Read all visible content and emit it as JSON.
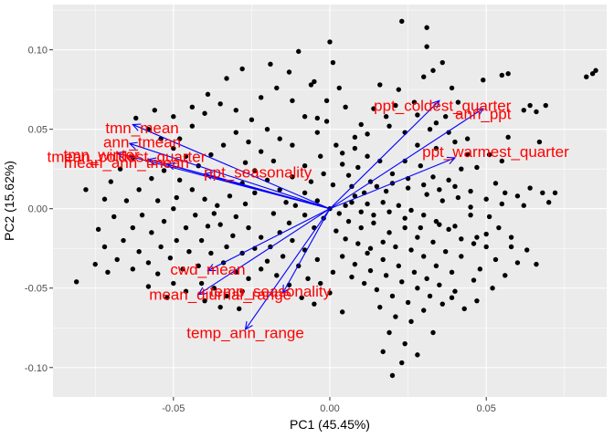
{
  "chart_data": {
    "type": "scatter",
    "title": "",
    "xlabel": "PC1 (45.45%)",
    "ylabel": "PC2 (15.62%)",
    "xlim": [
      -0.0885,
      0.0885
    ],
    "ylim": [
      -0.1185,
      0.1285
    ],
    "xticks": [
      -0.05,
      0.0,
      0.05
    ],
    "xtick_labels": [
      "-0.05",
      "0.00",
      "0.05"
    ],
    "yticks": [
      -0.1,
      -0.05,
      0.0,
      0.05,
      0.1
    ],
    "ytick_labels": [
      "-0.10",
      "-0.05",
      "0.00",
      "0.05",
      "0.10"
    ],
    "grid": true,
    "background": "#ebebeb",
    "point_color": "#000000",
    "arrow_color": "#0000ff",
    "label_color": "#ff0000",
    "loadings": [
      {
        "name": "tmn_mean",
        "x": -0.063,
        "y": 0.053
      },
      {
        "name": "ann_tmean",
        "x": -0.064,
        "y": 0.041
      },
      {
        "name": "tmn_winter",
        "x": -0.068,
        "y": 0.035
      },
      {
        "name": "tmean_coldest_quarter",
        "x": -0.058,
        "y": 0.031
      },
      {
        "name": "mean_ann_tmean",
        "x": -0.052,
        "y": 0.028
      },
      {
        "name": "ppt_seasonality",
        "x": -0.04,
        "y": 0.022
      },
      {
        "name": "ppt_coldest_quarter",
        "x": 0.035,
        "y": 0.068
      },
      {
        "name": "ann_ppt",
        "x": 0.049,
        "y": 0.063
      },
      {
        "name": "ppt_warmest_quarter",
        "x": 0.04,
        "y": 0.032
      },
      {
        "name": "cwd_mean",
        "x": -0.039,
        "y": -0.039
      },
      {
        "name": "mean_diurnal_range",
        "x": -0.042,
        "y": -0.054
      },
      {
        "name": "temp_seasonality",
        "x": -0.015,
        "y": -0.053
      },
      {
        "name": "temp_ann_range",
        "x": -0.027,
        "y": -0.076
      }
    ],
    "label_texts": [
      {
        "text": "tmn_mean",
        "x": -0.06,
        "y": 0.051
      },
      {
        "text": "ann_tmean",
        "x": -0.06,
        "y": 0.042
      },
      {
        "text": "tmn_winter",
        "x": -0.073,
        "y": 0.034
      },
      {
        "text": "tmean_coldest_quarter",
        "x": -0.065,
        "y": 0.033
      },
      {
        "text": "mean_ann_tmean",
        "x": -0.065,
        "y": 0.029
      },
      {
        "text": "ppt_seasonality",
        "x": -0.023,
        "y": 0.023
      },
      {
        "text": "ppt_coldest_quarter",
        "x": 0.036,
        "y": 0.065
      },
      {
        "text": "ann_ppt",
        "x": 0.049,
        "y": 0.06
      },
      {
        "text": "ppt_warmest_quarter",
        "x": 0.053,
        "y": 0.036
      },
      {
        "text": "cwd_mean",
        "x": -0.039,
        "y": -0.038
      },
      {
        "text": "mean_diurnal_range",
        "x": -0.035,
        "y": -0.054
      },
      {
        "text": "temp_seasonality",
        "x": -0.019,
        "y": -0.052
      },
      {
        "text": "temp_ann_range",
        "x": -0.027,
        "y": -0.078
      }
    ],
    "points": [
      [
        0.084,
        0.085
      ],
      [
        0.085,
        0.087
      ],
      [
        0.082,
        0.083
      ],
      [
        0.055,
        0.084
      ],
      [
        0.057,
        0.085
      ],
      [
        0.049,
        0.081
      ],
      [
        0.064,
        0.065
      ],
      [
        0.066,
        0.061
      ],
      [
        0.069,
        0.065
      ],
      [
        0.067,
        0.042
      ],
      [
        0.072,
        0.01
      ],
      [
        0.068,
        0.01
      ],
      [
        0.07,
        0.004
      ],
      [
        0.062,
        0.002
      ],
      [
        0.056,
        0.01
      ],
      [
        0.051,
        -0.005
      ],
      [
        0.05,
        -0.024
      ],
      [
        0.058,
        -0.024
      ],
      [
        0.066,
        -0.035
      ],
      [
        0.053,
        -0.032
      ],
      [
        0.048,
        -0.038
      ],
      [
        0.047,
        -0.018
      ],
      [
        0.045,
        0.001
      ],
      [
        0.053,
        0.016
      ],
      [
        0.055,
        0.03
      ],
      [
        0.057,
        0.045
      ],
      [
        0.062,
        0.062
      ],
      [
        0.023,
        0.118
      ],
      [
        0.031,
        0.114
      ],
      [
        0.031,
        0.102
      ],
      [
        0.036,
        0.092
      ],
      [
        0.033,
        0.087
      ],
      [
        0.03,
        0.083
      ],
      [
        0.039,
        0.076
      ],
      [
        0.041,
        0.067
      ],
      [
        0.037,
        0.058
      ],
      [
        0.032,
        0.05
      ],
      [
        0.028,
        0.059
      ],
      [
        0.021,
        0.065
      ],
      [
        0.016,
        0.078
      ],
      [
        0.014,
        0.063
      ],
      [
        0.01,
        0.053
      ],
      [
        0.019,
        0.052
      ],
      [
        0.024,
        0.048
      ],
      [
        0.028,
        0.04
      ],
      [
        0.034,
        0.038
      ],
      [
        0.04,
        0.042
      ],
      [
        0.044,
        0.034
      ],
      [
        0.042,
        0.025
      ],
      [
        0.038,
        0.018
      ],
      [
        0.033,
        0.02
      ],
      [
        0.029,
        0.027
      ],
      [
        0.024,
        0.03
      ],
      [
        0.02,
        0.022
      ],
      [
        0.016,
        0.03
      ],
      [
        0.012,
        0.033
      ],
      [
        0.009,
        0.026
      ],
      [
        0.006,
        0.021
      ],
      [
        0.013,
        0.017
      ],
      [
        0.018,
        0.011
      ],
      [
        0.025,
        0.013
      ],
      [
        0.031,
        0.009
      ],
      [
        0.036,
        0.005
      ],
      [
        0.041,
        0.007
      ],
      [
        0.045,
        -0.004
      ],
      [
        0.04,
        -0.011
      ],
      [
        0.035,
        -0.01
      ],
      [
        0.03,
        -0.004
      ],
      [
        0.026,
        -0.001
      ],
      [
        0.022,
        0.002
      ],
      [
        0.017,
        0.004
      ],
      [
        0.012,
        0.003
      ],
      [
        0.008,
        0.008
      ],
      [
        0.005,
        0.002
      ],
      [
        0.003,
        -0.003
      ],
      [
        0.006,
        -0.008
      ],
      [
        0.01,
        -0.012
      ],
      [
        0.014,
        -0.009
      ],
      [
        0.019,
        -0.015
      ],
      [
        0.024,
        -0.012
      ],
      [
        0.028,
        -0.018
      ],
      [
        0.033,
        -0.021
      ],
      [
        0.037,
        -0.027
      ],
      [
        0.042,
        -0.03
      ],
      [
        0.039,
        -0.04
      ],
      [
        0.034,
        -0.036
      ],
      [
        0.03,
        -0.03
      ],
      [
        0.026,
        -0.026
      ],
      [
        0.021,
        -0.024
      ],
      [
        0.017,
        -0.021
      ],
      [
        0.013,
        -0.025
      ],
      [
        0.009,
        -0.022
      ],
      [
        0.005,
        -0.019
      ],
      [
        0.002,
        -0.014
      ],
      [
        0.004,
        -0.03
      ],
      [
        0.008,
        -0.035
      ],
      [
        0.013,
        -0.039
      ],
      [
        0.018,
        -0.042
      ],
      [
        0.023,
        -0.046
      ],
      [
        0.028,
        -0.05
      ],
      [
        0.032,
        -0.055
      ],
      [
        0.036,
        -0.06
      ],
      [
        0.03,
        -0.064
      ],
      [
        0.025,
        -0.059
      ],
      [
        0.02,
        -0.055
      ],
      [
        0.015,
        -0.051
      ],
      [
        0.011,
        -0.047
      ],
      [
        0.007,
        -0.043
      ],
      [
        0.016,
        -0.062
      ],
      [
        0.021,
        -0.068
      ],
      [
        0.026,
        -0.071
      ],
      [
        0.019,
        -0.078
      ],
      [
        0.024,
        -0.085
      ],
      [
        0.028,
        -0.092
      ],
      [
        0.023,
        -0.097
      ],
      [
        0.017,
        -0.09
      ],
      [
        0.02,
        -0.105
      ],
      [
        0.033,
        -0.078
      ],
      [
        0.04,
        -0.052
      ],
      [
        0.046,
        -0.045
      ],
      [
        0.0,
        0.105
      ],
      [
        0.001,
        0.092
      ],
      [
        -0.005,
        0.08
      ],
      [
        0.003,
        0.076
      ],
      [
        -0.001,
        0.068
      ],
      [
        0.005,
        0.064
      ],
      [
        -0.004,
        0.057
      ],
      [
        0.008,
        0.045
      ],
      [
        0.002,
        0.04
      ],
      [
        -0.003,
        0.033
      ],
      [
        0.004,
        0.028
      ],
      [
        -0.002,
        0.022
      ],
      [
        0.001,
        0.015
      ],
      [
        -0.006,
        0.017
      ],
      [
        -0.008,
        0.01
      ],
      [
        -0.004,
        0.005
      ],
      [
        0.0,
        0.0
      ],
      [
        -0.002,
        -0.006
      ],
      [
        -0.005,
        -0.012
      ],
      [
        -0.008,
        -0.004
      ],
      [
        -0.011,
        0.002
      ],
      [
        -0.013,
        -0.009
      ],
      [
        -0.016,
        -0.015
      ],
      [
        -0.012,
        -0.02
      ],
      [
        -0.008,
        -0.026
      ],
      [
        -0.004,
        -0.032
      ],
      [
        -0.01,
        -0.036
      ],
      [
        -0.015,
        -0.03
      ],
      [
        -0.019,
        -0.024
      ],
      [
        -0.022,
        -0.018
      ],
      [
        -0.02,
        -0.033
      ],
      [
        -0.017,
        -0.042
      ],
      [
        -0.013,
        -0.048
      ],
      [
        -0.009,
        -0.056
      ],
      [
        -0.005,
        -0.06
      ],
      [
        -0.003,
        -0.047
      ],
      [
        0.001,
        -0.04
      ],
      [
        0.0,
        -0.053
      ],
      [
        0.004,
        -0.065
      ],
      [
        -0.007,
        -0.044
      ],
      [
        -0.024,
        0.01
      ],
      [
        -0.027,
        0.003
      ],
      [
        -0.03,
        -0.005
      ],
      [
        -0.026,
        -0.012
      ],
      [
        -0.031,
        -0.017
      ],
      [
        -0.035,
        -0.01
      ],
      [
        -0.033,
        -0.024
      ],
      [
        -0.028,
        -0.028
      ],
      [
        -0.024,
        -0.025
      ],
      [
        -0.022,
        -0.038
      ],
      [
        -0.026,
        -0.044
      ],
      [
        -0.03,
        -0.04
      ],
      [
        -0.034,
        -0.034
      ],
      [
        -0.038,
        -0.028
      ],
      [
        -0.041,
        -0.02
      ],
      [
        -0.039,
        -0.011
      ],
      [
        -0.043,
        -0.004
      ],
      [
        -0.046,
        -0.012
      ],
      [
        -0.049,
        -0.02
      ],
      [
        -0.045,
        -0.027
      ],
      [
        -0.042,
        -0.036
      ],
      [
        -0.047,
        -0.038
      ],
      [
        -0.051,
        -0.031
      ],
      [
        -0.054,
        -0.024
      ],
      [
        -0.057,
        -0.015
      ],
      [
        -0.053,
        -0.008
      ],
      [
        -0.05,
        0.0
      ],
      [
        -0.055,
        0.005
      ],
      [
        -0.06,
        -0.004
      ],
      [
        -0.063,
        -0.012
      ],
      [
        -0.066,
        -0.02
      ],
      [
        -0.061,
        -0.027
      ],
      [
        -0.058,
        -0.034
      ],
      [
        -0.055,
        -0.041
      ],
      [
        -0.05,
        -0.047
      ],
      [
        -0.046,
        -0.052
      ],
      [
        -0.041,
        -0.047
      ],
      [
        -0.037,
        -0.05
      ],
      [
        -0.033,
        -0.055
      ],
      [
        -0.028,
        -0.052
      ],
      [
        -0.029,
        -0.063
      ],
      [
        -0.035,
        -0.062
      ],
      [
        -0.04,
        -0.058
      ],
      [
        -0.052,
        -0.056
      ],
      [
        -0.058,
        -0.049
      ],
      [
        -0.063,
        -0.038
      ],
      [
        -0.068,
        -0.032
      ],
      [
        -0.072,
        -0.024
      ],
      [
        -0.074,
        -0.013
      ],
      [
        -0.069,
        -0.005
      ],
      [
        -0.072,
        0.006
      ],
      [
        -0.078,
        0.012
      ],
      [
        -0.075,
        -0.035
      ],
      [
        -0.081,
        -0.046
      ],
      [
        -0.071,
        -0.04
      ],
      [
        -0.065,
        0.005
      ],
      [
        -0.061,
        0.012
      ],
      [
        -0.057,
        0.019
      ],
      [
        -0.053,
        0.024
      ],
      [
        -0.048,
        0.018
      ],
      [
        -0.044,
        0.012
      ],
      [
        -0.04,
        0.006
      ],
      [
        -0.036,
        0.002
      ],
      [
        -0.032,
        0.008
      ],
      [
        -0.028,
        0.016
      ],
      [
        -0.024,
        0.024
      ],
      [
        -0.02,
        0.018
      ],
      [
        -0.016,
        0.012
      ],
      [
        -0.012,
        0.02
      ],
      [
        -0.008,
        0.027
      ],
      [
        -0.018,
        0.03
      ],
      [
        -0.022,
        0.036
      ],
      [
        -0.026,
        0.042
      ],
      [
        -0.03,
        0.048
      ],
      [
        -0.034,
        0.04
      ],
      [
        -0.038,
        0.034
      ],
      [
        -0.042,
        0.027
      ],
      [
        -0.046,
        0.033
      ],
      [
        -0.05,
        0.038
      ],
      [
        -0.054,
        0.044
      ],
      [
        -0.058,
        0.05
      ],
      [
        -0.062,
        0.057
      ],
      [
        -0.056,
        0.062
      ],
      [
        -0.05,
        0.058
      ],
      [
        -0.044,
        0.052
      ],
      [
        -0.04,
        0.06
      ],
      [
        -0.035,
        0.066
      ],
      [
        -0.03,
        0.062
      ],
      [
        -0.025,
        0.056
      ],
      [
        -0.02,
        0.05
      ],
      [
        -0.016,
        0.044
      ],
      [
        -0.012,
        0.04
      ],
      [
        -0.022,
        0.07
      ],
      [
        -0.017,
        0.076
      ],
      [
        -0.012,
        0.068
      ],
      [
        -0.008,
        0.058
      ],
      [
        -0.004,
        0.048
      ],
      [
        -0.044,
        0.064
      ],
      [
        -0.039,
        0.072
      ],
      [
        -0.033,
        0.082
      ],
      [
        -0.028,
        0.088
      ],
      [
        -0.019,
        0.091
      ],
      [
        -0.013,
        0.086
      ],
      [
        -0.067,
        0.025
      ],
      [
        -0.07,
        0.017
      ],
      [
        -0.063,
        0.032
      ],
      [
        -0.049,
        0.007
      ],
      [
        -0.037,
        -0.003
      ],
      [
        -0.018,
        -0.003
      ],
      [
        -0.014,
        0.004
      ],
      [
        -0.027,
        0.029
      ],
      [
        -0.048,
        0.044
      ],
      [
        -0.01,
        0.099
      ],
      [
        -0.006,
        0.078
      ],
      [
        -0.001,
        0.055
      ],
      [
        0.012,
        -0.028
      ],
      [
        0.017,
        -0.032
      ],
      [
        0.022,
        -0.036
      ],
      [
        0.027,
        -0.04
      ],
      [
        0.031,
        -0.044
      ],
      [
        0.035,
        -0.048
      ],
      [
        0.039,
        -0.056
      ],
      [
        0.043,
        -0.063
      ],
      [
        0.047,
        -0.058
      ],
      [
        0.052,
        -0.05
      ],
      [
        0.056,
        -0.042
      ],
      [
        0.06,
        -0.034
      ],
      [
        0.063,
        -0.026
      ],
      [
        0.058,
        -0.018
      ],
      [
        0.054,
        -0.012
      ],
      [
        0.05,
        -0.016
      ],
      [
        0.046,
        -0.022
      ],
      [
        0.042,
        -0.019
      ],
      [
        0.038,
        -0.013
      ],
      [
        0.034,
        -0.008
      ],
      [
        0.029,
        -0.012
      ],
      [
        0.024,
        -0.006
      ],
      [
        0.019,
        -0.002
      ],
      [
        0.014,
        -0.004
      ],
      [
        0.01,
        -0.002
      ],
      [
        0.007,
        0.004
      ],
      [
        0.011,
        0.01
      ],
      [
        0.015,
        0.014
      ],
      [
        0.02,
        0.016
      ],
      [
        0.025,
        0.019
      ],
      [
        0.03,
        0.015
      ],
      [
        0.035,
        0.012
      ],
      [
        0.04,
        0.014
      ],
      [
        0.045,
        0.011
      ],
      [
        0.05,
        0.006
      ],
      [
        0.055,
        0.003
      ],
      [
        0.06,
        0.008
      ],
      [
        0.064,
        0.013
      ],
      [
        0.047,
        0.026
      ],
      [
        0.051,
        0.034
      ],
      [
        0.044,
        0.044
      ],
      [
        0.038,
        0.048
      ],
      [
        0.034,
        0.054
      ],
      [
        0.027,
        0.067
      ],
      [
        0.022,
        0.075
      ],
      [
        0.018,
        0.058
      ],
      [
        0.012,
        0.047
      ],
      [
        0.008,
        0.038
      ],
      [
        0.004,
        0.035
      ],
      [
        0.007,
        0.014
      ]
    ]
  }
}
